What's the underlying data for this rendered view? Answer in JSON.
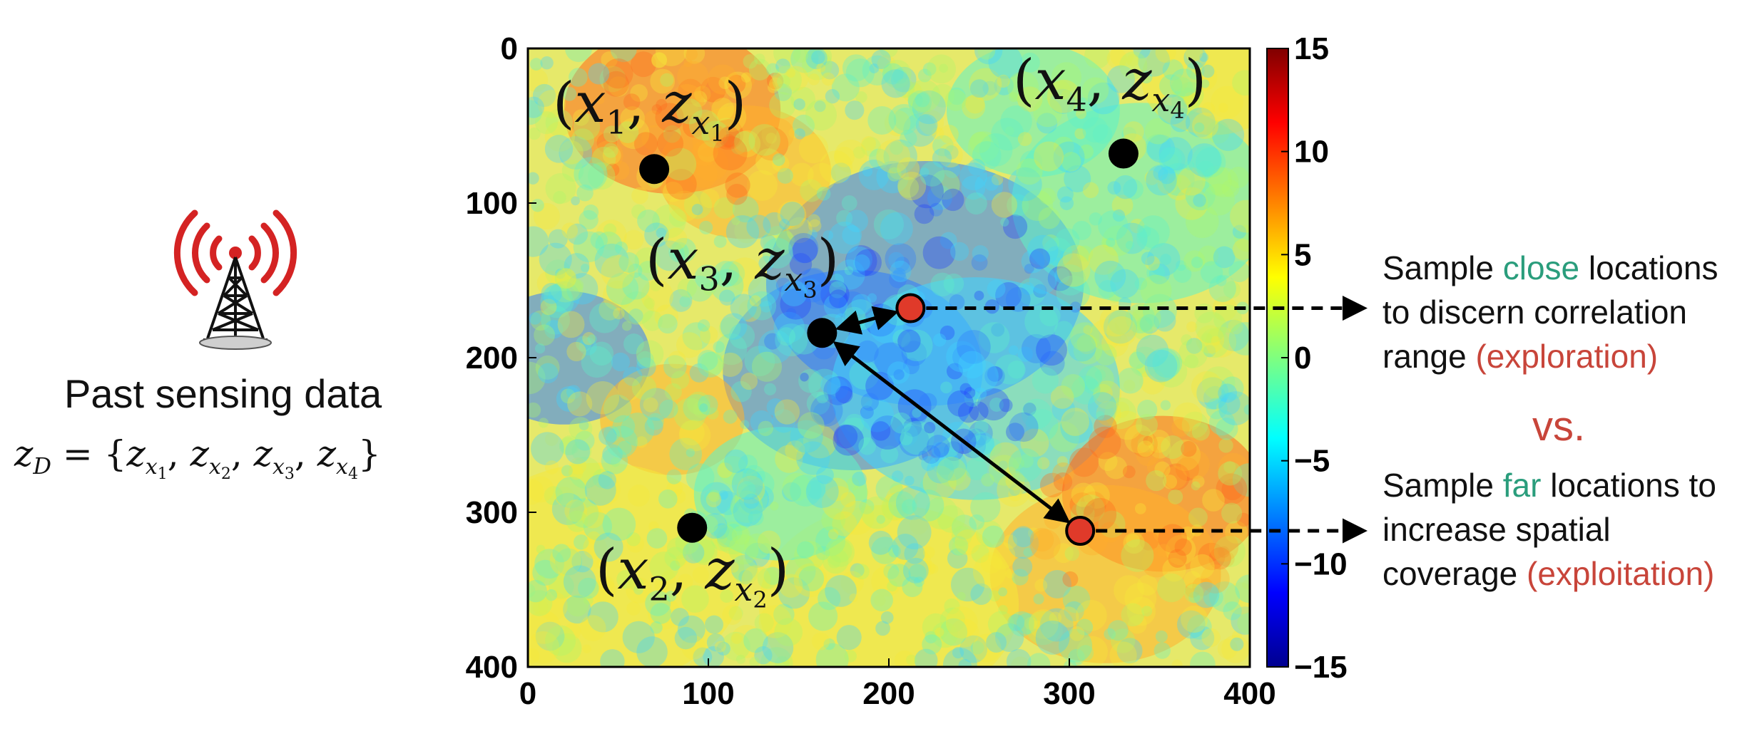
{
  "antenna": {
    "icon": "radio-tower-icon",
    "colors": {
      "waves": "#d42323",
      "tower": "#111111"
    }
  },
  "left": {
    "caption": "Past sensing data",
    "formula_lhs": "z",
    "formula_lhs_sub": "D",
    "formula_rhs": "= {z",
    "formula_items": [
      {
        "base": "z",
        "sub": "x",
        "subsub": "1"
      },
      {
        "base": "z",
        "sub": "x",
        "subsub": "2"
      },
      {
        "base": "z",
        "sub": "x",
        "subsub": "3"
      },
      {
        "base": "z",
        "sub": "x",
        "subsub": "4"
      }
    ]
  },
  "heatmap": {
    "x_ticks": [
      "0",
      "100",
      "200",
      "300",
      "400"
    ],
    "y_ticks": [
      "0",
      "100",
      "200",
      "300",
      "400"
    ],
    "colorbar_ticks": [
      "15",
      "10",
      "5",
      "0",
      "−5",
      "−10",
      "−15"
    ],
    "colorbar_range": [
      -15,
      15
    ],
    "colormap": "jet",
    "x_range": [
      0,
      400
    ],
    "y_range": [
      0,
      400
    ]
  },
  "points": {
    "observed": [
      {
        "label": "x1",
        "x": 70,
        "y": 78
      },
      {
        "label": "x2",
        "x": 91,
        "y": 310
      },
      {
        "label": "x3",
        "x": 163,
        "y": 184
      },
      {
        "label": "x4",
        "x": 330,
        "y": 68
      }
    ],
    "candidates": [
      {
        "label": "close",
        "x": 212,
        "y": 168
      },
      {
        "label": "far",
        "x": 306,
        "y": 312
      }
    ],
    "colors": {
      "observed": "#000000",
      "candidate": "#e03a2a"
    }
  },
  "annotations": {
    "close_line1_pre": "Sample ",
    "close_word": "close",
    "close_line1_post": " locations",
    "close_line2": "to discern correlation",
    "close_line3_pre": "range ",
    "close_line3_paren": "(exploration)",
    "vs": "vs.",
    "far_line1_pre": "Sample ",
    "far_word": "far",
    "far_line1_post": " locations to",
    "far_line2": "increase spatial",
    "far_line3_pre": "coverage ",
    "far_line3_paren": "(exploitation)",
    "colors": {
      "accent_green": "#2a9d7c",
      "accent_red": "#c8453a"
    }
  }
}
